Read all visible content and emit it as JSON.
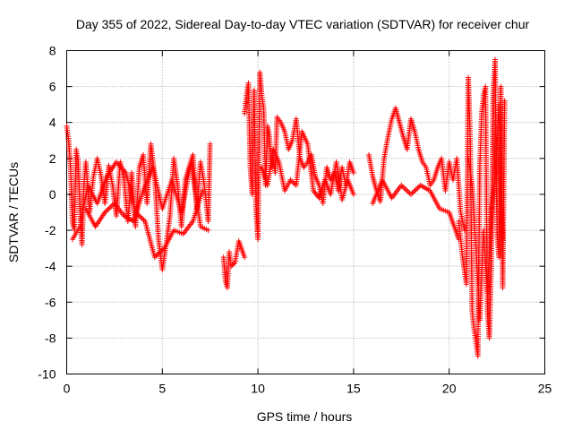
{
  "chart_data": {
    "type": "scatter",
    "title": "Day 355 of 2022, Sidereal Day-to-day VTEC variation (SDTVAR) for receiver chur",
    "xlabel": "GPS time / hours",
    "ylabel": "SDTVAR / TECUs",
    "xlim": [
      0,
      25
    ],
    "ylim": [
      -10,
      8
    ],
    "xticks": [
      0,
      5,
      10,
      15,
      20,
      25
    ],
    "yticks": [
      -10,
      -8,
      -6,
      -4,
      -2,
      0,
      2,
      4,
      6,
      8
    ],
    "xtick_labels": [
      "0",
      "5",
      "10",
      "15",
      "20",
      "25"
    ],
    "ytick_labels": [
      "-10",
      "-8",
      "-6",
      "-4",
      "-2",
      "0",
      "2",
      "4",
      "6",
      "8"
    ],
    "grid": true,
    "marker": "+",
    "series": [
      {
        "name": "SDTVAR",
        "color": "#ff0000",
        "segments": [
          {
            "x": [
              0.0,
              0.1,
              0.2,
              0.3,
              0.4,
              0.5,
              0.6,
              0.7,
              0.8,
              0.9,
              1.0,
              1.2,
              1.4,
              1.6,
              1.8,
              2.0,
              2.2,
              2.4,
              2.6,
              2.8,
              3.0,
              3.2,
              3.4,
              3.6,
              3.8,
              4.0,
              4.2,
              4.4,
              4.6,
              4.8,
              5.0,
              5.2,
              5.4,
              5.6,
              5.8,
              6.0,
              6.2,
              6.4,
              6.6,
              6.8,
              7.0,
              7.2,
              7.4,
              7.5
            ],
            "y": [
              3.8,
              3.0,
              1.5,
              -1.5,
              -2.0,
              2.5,
              1.8,
              -1.0,
              -2.8,
              0.5,
              1.8,
              -1.0,
              1.0,
              2.0,
              1.0,
              -0.5,
              1.6,
              0.5,
              -1.2,
              1.8,
              0.8,
              -1.5,
              1.2,
              -1.8,
              1.5,
              2.2,
              -0.5,
              2.8,
              1.0,
              -2.5,
              -4.2,
              -2.8,
              -1.2,
              2.0,
              0.5,
              -1.8,
              0.8,
              1.5,
              2.2,
              -0.8,
              1.8,
              0.5,
              -1.5,
              2.8
            ]
          },
          {
            "x": [
              1.0,
              1.5,
              2.0,
              2.5,
              3.0,
              3.5,
              4.0,
              4.5,
              5.0,
              5.5,
              6.0,
              6.5,
              7.0,
              7.4
            ],
            "y": [
              -0.8,
              -1.8,
              -1.0,
              -0.5,
              -1.2,
              -1.5,
              0.2,
              1.5,
              -0.8,
              0.8,
              -1.0,
              1.8,
              -1.8,
              -2.0
            ]
          },
          {
            "x": [
              0.3,
              0.7,
              1.1,
              1.6,
              2.1,
              2.6,
              3.1,
              3.6,
              4.1,
              4.6,
              5.1,
              5.6,
              6.1,
              6.6,
              7.1
            ],
            "y": [
              -2.5,
              -1.8,
              0.5,
              -0.5,
              1.0,
              1.8,
              1.2,
              -1.0,
              -1.5,
              -3.5,
              -3.0,
              -2.0,
              -2.2,
              -1.5,
              0.2
            ]
          },
          {
            "x": [
              8.2,
              8.3,
              8.4,
              8.5,
              8.6,
              8.8,
              9.0,
              9.3
            ],
            "y": [
              -3.5,
              -4.8,
              -5.2,
              -3.2,
              -4.0,
              -3.8,
              -2.6,
              -3.5
            ]
          },
          {
            "x": [
              9.3,
              9.4,
              9.5,
              9.6,
              9.7,
              9.8,
              9.9,
              10.0,
              10.1,
              10.2,
              10.3,
              10.4,
              10.5,
              10.6,
              10.7,
              10.8,
              10.9,
              11.0,
              11.2,
              11.4,
              11.6,
              11.8,
              12.0,
              12.2,
              12.4,
              12.6,
              12.8,
              13.0,
              13.2,
              13.4,
              13.6,
              13.8,
              14.0,
              14.2,
              14.4,
              14.6,
              14.8,
              15.0
            ],
            "y": [
              4.5,
              5.5,
              6.2,
              1.5,
              0.0,
              5.8,
              -0.8,
              -2.5,
              6.8,
              5.5,
              4.8,
              0.5,
              3.8,
              3.2,
              1.5,
              2.0,
              1.2,
              4.3,
              4.0,
              3.5,
              2.5,
              3.0,
              4.2,
              2.0,
              1.5,
              1.8,
              2.2,
              1.0,
              0.5,
              -0.5,
              1.5,
              0.8,
              1.2,
              0.2,
              1.5,
              0.5,
              1.8,
              1.2
            ]
          },
          {
            "x": [
              10.2,
              10.5,
              10.8,
              11.1,
              11.4,
              11.7,
              12.0,
              12.3,
              12.6,
              12.9,
              13.2,
              13.5,
              13.8,
              14.1,
              14.4,
              14.7,
              15.0
            ],
            "y": [
              1.5,
              0.5,
              2.5,
              1.8,
              0.2,
              0.8,
              0.5,
              3.5,
              2.8,
              0.2,
              -0.2,
              0.8,
              0.0,
              1.8,
              -0.3,
              0.8,
              0.0
            ]
          },
          {
            "x": [
              15.8,
              16.0,
              16.2,
              16.4,
              16.6,
              16.8,
              17.0,
              17.2,
              17.4,
              17.6,
              17.8,
              18.0,
              18.2,
              18.4,
              18.6,
              18.8,
              19.0,
              19.2,
              19.4,
              19.6,
              19.8,
              20.0,
              20.2,
              20.4,
              20.6,
              20.8
            ],
            "y": [
              2.2,
              1.0,
              0.2,
              -0.4,
              2.0,
              3.2,
              4.2,
              4.8,
              4.0,
              3.2,
              2.5,
              4.2,
              3.5,
              2.5,
              1.8,
              1.5,
              0.5,
              0.8,
              1.5,
              2.0,
              0.2,
              1.8,
              0.8,
              2.0,
              -1.0,
              -2.0
            ]
          },
          {
            "x": [
              16.0,
              16.5,
              17.0,
              17.5,
              18.0,
              18.5,
              19.0,
              19.5,
              20.0,
              20.5
            ],
            "y": [
              -0.5,
              0.8,
              -0.2,
              0.5,
              0.0,
              0.5,
              0.2,
              -0.8,
              -1.0,
              -2.5
            ]
          },
          {
            "x": [
              20.5,
              20.7,
              20.9,
              21.0,
              21.1,
              21.2,
              21.3,
              21.4,
              21.5,
              21.6,
              21.7,
              21.8,
              21.9,
              22.0,
              22.1,
              22.2,
              22.3,
              22.4,
              22.5,
              22.6,
              22.7,
              22.8,
              22.9
            ],
            "y": [
              -1.5,
              -3.5,
              -5.0,
              6.5,
              3.0,
              -6.5,
              -7.5,
              -8.2,
              -9.0,
              1.5,
              4.5,
              5.5,
              6.0,
              -6.5,
              -8.0,
              -4.0,
              5.5,
              7.5,
              -2.0,
              -3.5,
              6.0,
              -5.2,
              5.2
            ]
          },
          {
            "x": [
              21.0,
              21.2,
              21.4,
              21.6,
              21.8,
              22.0,
              22.2,
              22.4,
              22.6,
              22.8
            ],
            "y": [
              2.0,
              0.5,
              -3.0,
              -7.0,
              -2.0,
              -5.5,
              -1.0,
              1.0,
              5.0,
              -2.5
            ]
          }
        ]
      }
    ]
  }
}
